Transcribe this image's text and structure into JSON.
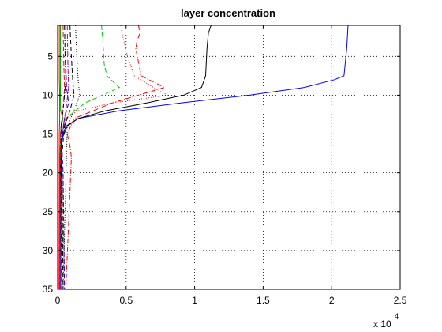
{
  "chart_data": {
    "type": "line",
    "title": "layer concentration",
    "xlabel": "",
    "ylabel": "",
    "x_multiplier": {
      "base": "x 10",
      "exponent": "4"
    },
    "xlim": [
      0,
      25000
    ],
    "ylim": [
      1,
      35
    ],
    "y_reversed": true,
    "grid": true,
    "xticks": [
      0,
      5000,
      10000,
      15000,
      20000,
      25000
    ],
    "xtick_labels": [
      "0",
      "0.5",
      "1",
      "1.5",
      "2",
      "2.5"
    ],
    "yticks": [
      5,
      10,
      15,
      20,
      25,
      30,
      35
    ],
    "ytick_labels": [
      "5",
      "10",
      "15",
      "20",
      "25",
      "30",
      "35"
    ],
    "series": [
      {
        "color": "#0000ff",
        "style": "solid",
        "x": [
          21200,
          21100,
          20900,
          20200,
          18000,
          14000,
          9000,
          4500,
          1500,
          700,
          350,
          250,
          220
        ],
        "y": [
          1,
          4,
          7.5,
          8,
          9,
          10,
          11,
          12,
          13,
          14,
          15.5,
          17,
          35
        ]
      },
      {
        "color": "#000000",
        "style": "solid",
        "x": [
          11200,
          11000,
          10900,
          10800,
          10500,
          9200,
          6500,
          3500,
          1500,
          600,
          300,
          200,
          150
        ],
        "y": [
          1,
          2,
          4,
          7.5,
          9,
          10,
          11,
          12,
          13,
          14,
          15.5,
          17,
          35
        ]
      },
      {
        "color": "#00aa00",
        "style": "solid",
        "x": [
          200,
          200,
          200,
          220,
          400,
          250,
          200,
          150,
          150
        ],
        "y": [
          1,
          5,
          10,
          12,
          13,
          14,
          16,
          19,
          35
        ]
      },
      {
        "color": "#ff0000",
        "style": "solid",
        "x": [
          120,
          120,
          150,
          150,
          120,
          100
        ],
        "y": [
          1,
          8,
          10,
          13,
          15,
          35
        ]
      },
      {
        "color": "#00cc00",
        "style": "dashed",
        "x": [
          3200,
          3300,
          3400,
          3600,
          4500,
          2000,
          600,
          300,
          400
        ],
        "y": [
          1,
          3,
          6,
          7.5,
          9,
          11,
          13,
          15,
          35
        ]
      },
      {
        "color": "#ff0000",
        "style": "dashdot",
        "x": [
          5900,
          6000,
          5800,
          5700,
          6100,
          7800,
          4000,
          1200,
          700,
          900,
          1000,
          600
        ],
        "y": [
          1,
          2,
          3,
          4,
          7.5,
          9,
          11,
          13,
          15,
          16.5,
          18,
          35
        ]
      },
      {
        "color": "#ff0000",
        "style": "dotted",
        "x": [
          4600,
          4700,
          4900,
          5100,
          5600,
          7000,
          8000,
          4000,
          1500,
          600,
          300,
          500
        ],
        "y": [
          1,
          2,
          3.5,
          5,
          7.5,
          9,
          10,
          11,
          12,
          13,
          15,
          35
        ]
      },
      {
        "color": "#0000ff",
        "style": "dashed",
        "x": [
          600,
          600,
          650,
          800,
          500,
          300,
          400,
          500
        ],
        "y": [
          1,
          6,
          9,
          11,
          13,
          16,
          20,
          35
        ]
      },
      {
        "color": "#000000",
        "style": "dashed",
        "x": [
          900,
          1000,
          1100,
          1200,
          900,
          500,
          300,
          400
        ],
        "y": [
          1,
          5,
          8,
          10,
          12,
          14,
          18,
          35
        ]
      },
      {
        "color": "#000000",
        "style": "dotted",
        "x": [
          1300,
          1400,
          1500,
          1600,
          1200,
          700,
          400
        ],
        "y": [
          1,
          5,
          8,
          10,
          12,
          14,
          35
        ]
      },
      {
        "color": "#aa00aa",
        "style": "dashdot",
        "x": [
          700,
          750,
          800,
          600,
          300,
          200
        ],
        "y": [
          1,
          6,
          9,
          12,
          15,
          35
        ]
      },
      {
        "color": "#ff0000",
        "style": "dashed",
        "x": [
          400,
          450,
          500,
          400,
          200,
          150
        ],
        "y": [
          1,
          6,
          9,
          12,
          15,
          35
        ]
      },
      {
        "color": "#000000",
        "style": "dashdot",
        "x": [
          500,
          550,
          600,
          450,
          250,
          300
        ],
        "y": [
          1,
          5,
          8,
          11,
          14,
          35
        ]
      }
    ]
  }
}
